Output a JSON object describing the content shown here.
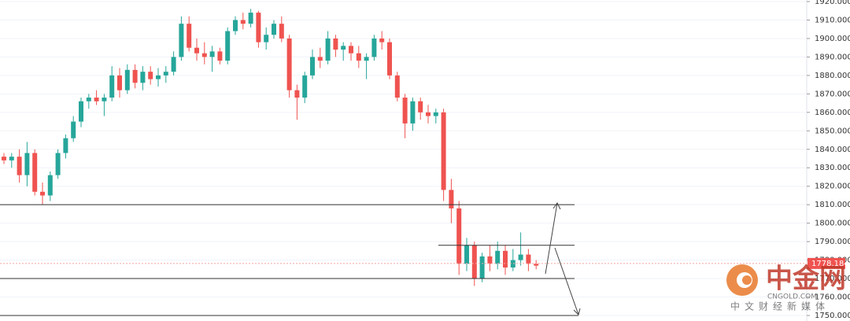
{
  "chart_data": {
    "type": "candlestick",
    "ylim": [
      1750,
      1920
    ],
    "yticks": [
      {
        "value": 1750,
        "label": "1750.000"
      },
      {
        "value": 1760,
        "label": "1760.000"
      },
      {
        "value": 1770,
        "label": "1770.000"
      },
      {
        "value": 1780,
        "label": "1780.000"
      },
      {
        "value": 1790,
        "label": "1790.000"
      },
      {
        "value": 1800,
        "label": "1800.000"
      },
      {
        "value": 1810,
        "label": "1810.000"
      },
      {
        "value": 1820,
        "label": "1820.000"
      },
      {
        "value": 1830,
        "label": "1830.000"
      },
      {
        "value": 1840,
        "label": "1840.000"
      },
      {
        "value": 1850,
        "label": "1850.000"
      },
      {
        "value": 1860,
        "label": "1860.000"
      },
      {
        "value": 1870,
        "label": "1870.000"
      },
      {
        "value": 1880,
        "label": "1880.000"
      },
      {
        "value": 1890,
        "label": "1890.000"
      },
      {
        "value": 1900,
        "label": "1900.000"
      },
      {
        "value": 1910,
        "label": "1910.000"
      },
      {
        "value": 1920,
        "label": "1920.000"
      }
    ],
    "grid": true,
    "up_color": "#26a69a",
    "down_color": "#ef5350",
    "candles": [
      {
        "o": 1836,
        "h": 1838,
        "l": 1832,
        "c": 1834
      },
      {
        "o": 1834,
        "h": 1838,
        "l": 1830,
        "c": 1836
      },
      {
        "o": 1836,
        "h": 1840,
        "l": 1822,
        "c": 1826
      },
      {
        "o": 1826,
        "h": 1844,
        "l": 1820,
        "c": 1838
      },
      {
        "o": 1838,
        "h": 1840,
        "l": 1815,
        "c": 1817
      },
      {
        "o": 1817,
        "h": 1822,
        "l": 1810,
        "c": 1815
      },
      {
        "o": 1815,
        "h": 1828,
        "l": 1812,
        "c": 1826
      },
      {
        "o": 1826,
        "h": 1840,
        "l": 1824,
        "c": 1838
      },
      {
        "o": 1838,
        "h": 1848,
        "l": 1835,
        "c": 1846
      },
      {
        "o": 1846,
        "h": 1858,
        "l": 1844,
        "c": 1855
      },
      {
        "o": 1855,
        "h": 1868,
        "l": 1852,
        "c": 1866
      },
      {
        "o": 1866,
        "h": 1870,
        "l": 1862,
        "c": 1868
      },
      {
        "o": 1868,
        "h": 1872,
        "l": 1864,
        "c": 1866
      },
      {
        "o": 1866,
        "h": 1870,
        "l": 1858,
        "c": 1868
      },
      {
        "o": 1868,
        "h": 1885,
        "l": 1866,
        "c": 1880
      },
      {
        "o": 1880,
        "h": 1884,
        "l": 1868,
        "c": 1872
      },
      {
        "o": 1872,
        "h": 1886,
        "l": 1870,
        "c": 1883
      },
      {
        "o": 1883,
        "h": 1886,
        "l": 1873,
        "c": 1876
      },
      {
        "o": 1876,
        "h": 1885,
        "l": 1872,
        "c": 1882
      },
      {
        "o": 1882,
        "h": 1885,
        "l": 1875,
        "c": 1878
      },
      {
        "o": 1878,
        "h": 1884,
        "l": 1874,
        "c": 1880
      },
      {
        "o": 1880,
        "h": 1885,
        "l": 1876,
        "c": 1882
      },
      {
        "o": 1882,
        "h": 1893,
        "l": 1880,
        "c": 1890
      },
      {
        "o": 1890,
        "h": 1912,
        "l": 1888,
        "c": 1908
      },
      {
        "o": 1908,
        "h": 1912,
        "l": 1893,
        "c": 1895
      },
      {
        "o": 1895,
        "h": 1900,
        "l": 1888,
        "c": 1892
      },
      {
        "o": 1892,
        "h": 1898,
        "l": 1886,
        "c": 1890
      },
      {
        "o": 1890,
        "h": 1896,
        "l": 1882,
        "c": 1893
      },
      {
        "o": 1893,
        "h": 1895,
        "l": 1886,
        "c": 1888
      },
      {
        "o": 1888,
        "h": 1906,
        "l": 1886,
        "c": 1904
      },
      {
        "o": 1904,
        "h": 1912,
        "l": 1902,
        "c": 1910
      },
      {
        "o": 1910,
        "h": 1914,
        "l": 1905,
        "c": 1908
      },
      {
        "o": 1908,
        "h": 1916,
        "l": 1906,
        "c": 1914
      },
      {
        "o": 1914,
        "h": 1915,
        "l": 1895,
        "c": 1898
      },
      {
        "o": 1898,
        "h": 1906,
        "l": 1894,
        "c": 1902
      },
      {
        "o": 1902,
        "h": 1910,
        "l": 1900,
        "c": 1908
      },
      {
        "o": 1908,
        "h": 1912,
        "l": 1898,
        "c": 1900
      },
      {
        "o": 1900,
        "h": 1902,
        "l": 1868,
        "c": 1872
      },
      {
        "o": 1872,
        "h": 1875,
        "l": 1856,
        "c": 1868
      },
      {
        "o": 1868,
        "h": 1882,
        "l": 1865,
        "c": 1880
      },
      {
        "o": 1880,
        "h": 1894,
        "l": 1878,
        "c": 1890
      },
      {
        "o": 1890,
        "h": 1895,
        "l": 1884,
        "c": 1888
      },
      {
        "o": 1888,
        "h": 1904,
        "l": 1886,
        "c": 1900
      },
      {
        "o": 1900,
        "h": 1902,
        "l": 1890,
        "c": 1894
      },
      {
        "o": 1894,
        "h": 1898,
        "l": 1888,
        "c": 1896
      },
      {
        "o": 1896,
        "h": 1898,
        "l": 1888,
        "c": 1892
      },
      {
        "o": 1892,
        "h": 1896,
        "l": 1884,
        "c": 1888
      },
      {
        "o": 1888,
        "h": 1892,
        "l": 1878,
        "c": 1890
      },
      {
        "o": 1890,
        "h": 1902,
        "l": 1888,
        "c": 1900
      },
      {
        "o": 1900,
        "h": 1904,
        "l": 1894,
        "c": 1898
      },
      {
        "o": 1898,
        "h": 1900,
        "l": 1878,
        "c": 1880
      },
      {
        "o": 1880,
        "h": 1882,
        "l": 1866,
        "c": 1868
      },
      {
        "o": 1868,
        "h": 1870,
        "l": 1846,
        "c": 1854
      },
      {
        "o": 1854,
        "h": 1868,
        "l": 1850,
        "c": 1866
      },
      {
        "o": 1866,
        "h": 1868,
        "l": 1856,
        "c": 1860
      },
      {
        "o": 1860,
        "h": 1864,
        "l": 1854,
        "c": 1858
      },
      {
        "o": 1858,
        "h": 1862,
        "l": 1854,
        "c": 1860
      },
      {
        "o": 1860,
        "h": 1862,
        "l": 1812,
        "c": 1818
      },
      {
        "o": 1818,
        "h": 1824,
        "l": 1800,
        "c": 1808
      },
      {
        "o": 1808,
        "h": 1812,
        "l": 1772,
        "c": 1778
      },
      {
        "o": 1778,
        "h": 1792,
        "l": 1774,
        "c": 1788
      },
      {
        "o": 1788,
        "h": 1790,
        "l": 1766,
        "c": 1770
      },
      {
        "o": 1770,
        "h": 1784,
        "l": 1768,
        "c": 1782
      },
      {
        "o": 1782,
        "h": 1788,
        "l": 1774,
        "c": 1778
      },
      {
        "o": 1778,
        "h": 1790,
        "l": 1775,
        "c": 1785
      },
      {
        "o": 1785,
        "h": 1788,
        "l": 1772,
        "c": 1776
      },
      {
        "o": 1776,
        "h": 1786,
        "l": 1774,
        "c": 1780
      },
      {
        "o": 1780,
        "h": 1795,
        "l": 1777,
        "c": 1783
      },
      {
        "o": 1783,
        "h": 1786,
        "l": 1774,
        "c": 1778
      },
      {
        "o": 1778,
        "h": 1780,
        "l": 1775,
        "c": 1777
      }
    ],
    "levels": [
      1810,
      1788,
      1770,
      1750
    ],
    "current_price": {
      "value": 1778.184,
      "label": "1778.184"
    },
    "watermark": {
      "logo": "中金网",
      "site": "CNGOLD.COM",
      "tagline": "中文财经新媒体"
    }
  }
}
